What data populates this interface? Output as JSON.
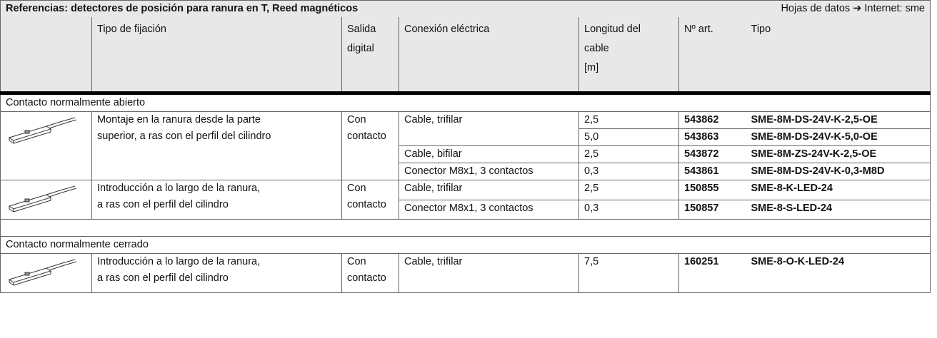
{
  "header": {
    "title": "Referencias: detectores de posición para ranura en T, Reed magnéticos",
    "datasheet": "Hojas de datos ➔ Internet: sme"
  },
  "columns": [
    {
      "lines": [
        "Tipo de fijación"
      ]
    },
    {
      "lines": [
        "Salida",
        "digital"
      ]
    },
    {
      "lines": [
        "Conexión eléctrica"
      ]
    },
    {
      "lines": [
        "Longitud del",
        "cable",
        "[m]"
      ]
    },
    {
      "lines": [
        "Nº art."
      ]
    },
    {
      "lines": [
        "Tipo"
      ]
    }
  ],
  "sections": [
    {
      "title": "Contacto normalmente abierto",
      "groups": [
        {
          "mounting": [
            "Montaje en la ranura desde la parte",
            "superior, a ras con el perfil del cilindro"
          ],
          "output": [
            "Con",
            "contacto"
          ],
          "connections": [
            {
              "label": "Cable, trifilar",
              "entries": [
                {
                  "length": "2,5",
                  "part": "543862",
                  "type": "SME-8M-DS-24V-K-2,5-OE"
                },
                {
                  "length": "5,0",
                  "part": "543863",
                  "type": "SME-8M-DS-24V-K-5,0-OE"
                }
              ]
            },
            {
              "label": "Cable, bifilar",
              "entries": [
                {
                  "length": "2,5",
                  "part": "543872",
                  "type": "SME-8M-ZS-24V-K-2,5-OE"
                }
              ]
            },
            {
              "label": "Conector M8x1, 3 contactos",
              "entries": [
                {
                  "length": "0,3",
                  "part": "543861",
                  "type": "SME-8M-DS-24V-K-0,3-M8D"
                }
              ]
            }
          ]
        },
        {
          "mounting": [
            "Introducción a lo largo de la ranura,",
            "a ras con el perfil del cilindro"
          ],
          "output": [
            "Con",
            "contacto"
          ],
          "connections": [
            {
              "label": "Cable, trifilar",
              "entries": [
                {
                  "length": "2,5",
                  "part": "150855",
                  "type": "SME-8-K-LED-24"
                }
              ]
            },
            {
              "label": "Conector M8x1, 3 contactos",
              "entries": [
                {
                  "length": "0,3",
                  "part": "150857",
                  "type": "SME-8-S-LED-24"
                }
              ]
            }
          ]
        }
      ]
    },
    {
      "title": "Contacto normalmente cerrado",
      "groups": [
        {
          "mounting": [
            "Introducción a lo largo de la ranura,",
            "a ras con el perfil del cilindro"
          ],
          "output": [
            "Con",
            "contacto"
          ],
          "connections": [
            {
              "label": "Cable, trifilar",
              "entries": [
                {
                  "length": "7,5",
                  "part": "160251",
                  "type": "SME-8-O-K-LED-24"
                }
              ]
            }
          ]
        }
      ]
    }
  ]
}
